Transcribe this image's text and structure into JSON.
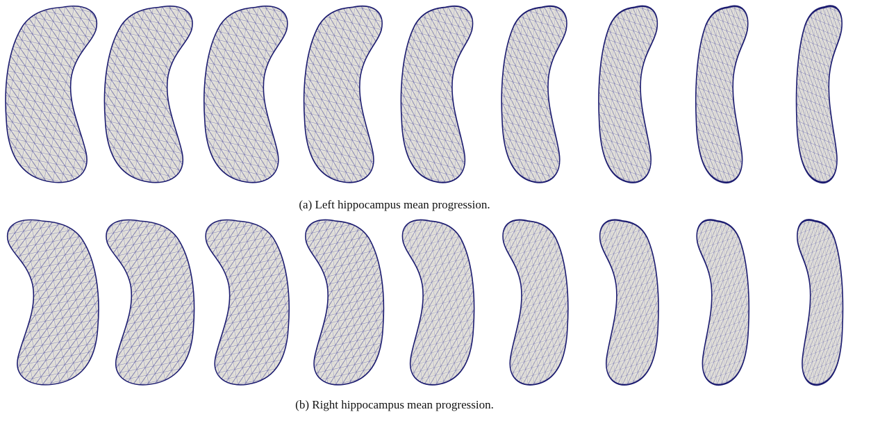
{
  "figure": {
    "captions": [
      "(a) Left hippocampus mean progression.",
      "(b) Right hippocampus mean progression."
    ]
  }
}
